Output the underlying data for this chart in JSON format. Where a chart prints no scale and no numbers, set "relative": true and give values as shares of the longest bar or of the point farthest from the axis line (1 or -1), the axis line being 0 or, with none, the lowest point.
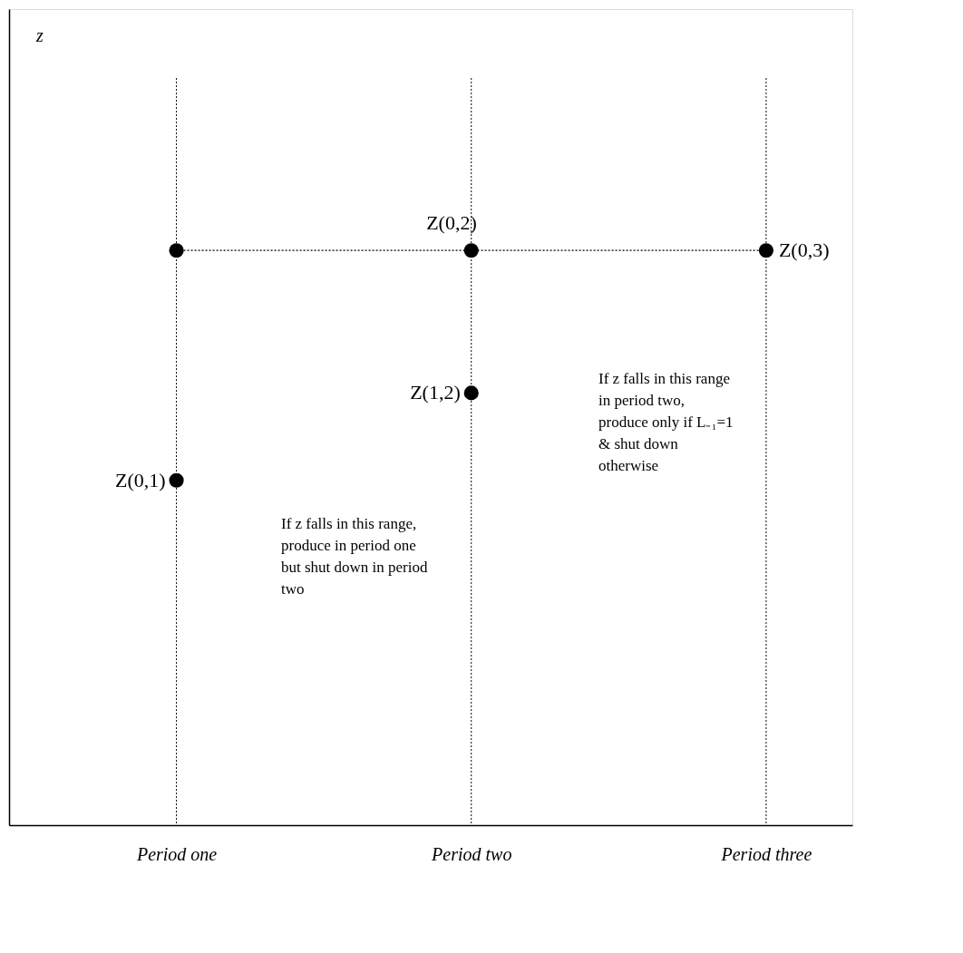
{
  "chart_data": {
    "type": "scatter",
    "relative": true,
    "categories": [
      "Period one",
      "Period two",
      "Period three"
    ],
    "series": [
      {
        "type": "line",
        "color": "#000000",
        "line_style": "dotted",
        "marker": "circle",
        "values": [
          1,
          1,
          1
        ]
      },
      {
        "color": "#000000",
        "marker": "circle",
        "values": [
          0.6,
          0.752,
          null
        ]
      }
    ],
    "ref_lines": [
      {
        "axis": "x",
        "value": "Period one",
        "line_style": "dotted",
        "color": "#000000"
      },
      {
        "axis": "x",
        "value": "Period two",
        "line_style": "dotted",
        "color": "#000000"
      },
      {
        "axis": "x",
        "value": "Period three",
        "line_style": "dotted",
        "color": "#000000"
      }
    ],
    "annotations": [
      {
        "text": "Z(0,2)",
        "x": "Period two",
        "y": 1
      },
      {
        "text": "Z(0,3)",
        "x": "Period three",
        "y": 1
      },
      {
        "text": "Z(1,2)",
        "x": "Period two",
        "y": 0.752
      },
      {
        "text": "Z(0,1)",
        "x": "Period one",
        "y": 0.6
      },
      "z",
      "If z falls in this range,\nproduce in period one\nbut shut down in period\ntwo",
      "If z falls in this range\nin period two,\nproduce only if L₋₁=1\n& shut down\notherwise"
    ],
    "grid": false
  }
}
